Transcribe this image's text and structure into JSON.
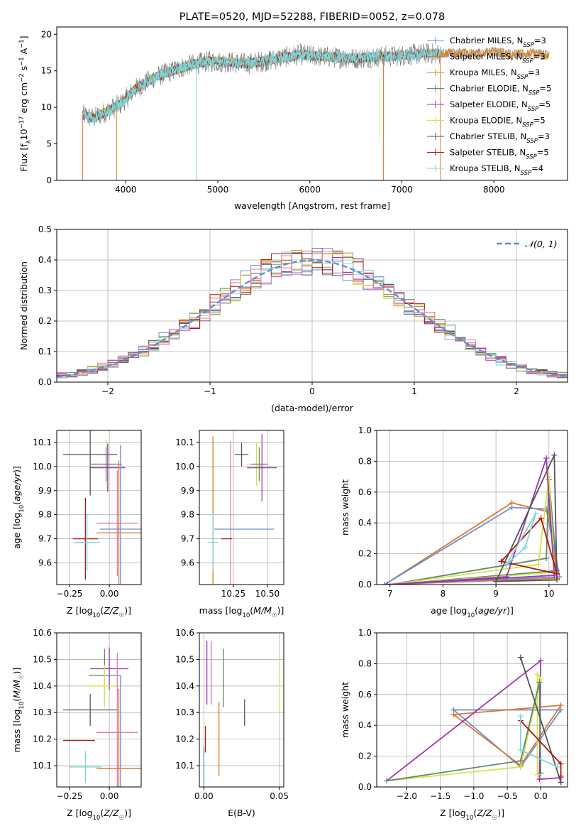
{
  "colors": {
    "Chabrier MILES": "#6b8fd4",
    "Salpeter MILES": "#e0782c",
    "Kroupa MILES": "#cc8a1e",
    "Chabrier ELODIE": "#5e8a6a",
    "Salpeter ELODIE": "#9a37b0",
    "Kroupa ELODIE": "#d4e34a",
    "Chabrier STELIB": "#555555",
    "Salpeter STELIB": "#b01515",
    "Kroupa STELIB": "#7fd6d8",
    "pink": "#e07bb8",
    "gauss": "#5b8fd6"
  },
  "chart_data": [
    {
      "id": "spectrum",
      "type": "line",
      "title": "PLATE=0520, MJD=52288, FIBERID=0052, z=0.078",
      "xlabel": "wavelength [Angstrom, rest frame]",
      "ylabel": "Flux [f_λ10^-17 erg cm^-2 s^-1 A^-1]",
      "xlim": [
        3250,
        8800
      ],
      "ylim": [
        0,
        21
      ],
      "xticks": [
        4000,
        5000,
        6000,
        7000,
        8000
      ],
      "yticks": [
        0,
        5,
        10,
        15,
        20
      ],
      "legend_placement": "top-right",
      "legend": [
        {
          "name": "Chabrier MILES",
          "nssp": "3"
        },
        {
          "name": "Salpeter MILES",
          "nssp": "3"
        },
        {
          "name": "Kroupa MILES",
          "nssp": "3"
        },
        {
          "name": "Chabrier ELODIE",
          "nssp": "5"
        },
        {
          "name": "Salpeter ELODIE",
          "nssp": "5"
        },
        {
          "name": "Kroupa ELODIE",
          "nssp": "5"
        },
        {
          "name": "Chabrier STELIB",
          "nssp": "3"
        },
        {
          "name": "Salpeter STELIB",
          "nssp": "5"
        },
        {
          "name": "Kroupa STELIB",
          "nssp": "4"
        }
      ],
      "continuum": {
        "x": [
          3530,
          3650,
          3800,
          3950,
          4100,
          4300,
          4500,
          4700,
          4900,
          5100,
          5300,
          5500,
          5700,
          5900,
          6100,
          6300,
          6500,
          6700,
          6900,
          7100,
          7300,
          7420
        ],
        "y": [
          9.0,
          8.5,
          9.5,
          10.5,
          12.5,
          14.0,
          15.0,
          15.8,
          16.3,
          16.2,
          16.0,
          16.3,
          16.8,
          17.2,
          17.0,
          16.8,
          16.7,
          16.9,
          17.0,
          17.2,
          17.4,
          17.3
        ]
      },
      "models_tail": {
        "x": [
          7420,
          7600,
          7800,
          8000,
          8200,
          8400,
          8600
        ],
        "y": [
          17.3,
          17.5,
          17.3,
          17.6,
          17.2,
          17.4,
          17.1
        ]
      }
    },
    {
      "id": "residuals",
      "type": "bar",
      "xlabel": "(data-model)/error",
      "ylabel": "Normed distribution",
      "xlim": [
        -2.5,
        2.5
      ],
      "ylim": [
        0,
        0.5
      ],
      "xticks": [
        -2,
        -1,
        0,
        1,
        2
      ],
      "yticks": [
        0.0,
        0.1,
        0.2,
        0.3,
        0.4,
        0.5
      ],
      "legend_placement": "top-right",
      "gauss_label": "𝒩(0, 1)",
      "bin_width": 0.1,
      "bin_start": -2.5
    },
    {
      "id": "age-vs-z",
      "type": "scatter",
      "xlabel": "Z [log10(Z/Z☉)]",
      "ylabel": "age  [log10(age/yr)]",
      "xlim": [
        -0.33,
        0.2
      ],
      "ylim": [
        9.51,
        10.15
      ],
      "xticks": [
        -0.25,
        0.0
      ],
      "yticks": [
        9.6,
        9.7,
        9.8,
        9.9,
        10.0,
        10.1
      ],
      "points": [
        {
          "model": "Chabrier STELIB",
          "x": -0.12,
          "y": 10.05,
          "xerr": 0.17,
          "yerr": 0.17
        },
        {
          "model": "Kroupa ELODIE",
          "x": -0.02,
          "y": 10.01,
          "xerr": 0.1,
          "yerr": 0.1
        },
        {
          "model": "Chabrier ELODIE",
          "x": -0.02,
          "y": 10.01,
          "xerr": 0.1,
          "yerr": 0.07
        },
        {
          "model": "Salpeter ELODIE",
          "x": -0.01,
          "y": 9.995,
          "xerr": 0.11,
          "yerr": 0.1
        },
        {
          "model": "pink",
          "x": 0.05,
          "y": 9.765,
          "xerr": 0.13,
          "yerr": 0.22
        },
        {
          "model": "Chabrier MILES",
          "x": 0.07,
          "y": 9.74,
          "xerr": 0.13,
          "yerr": 0.35
        },
        {
          "model": "Salpeter MILES",
          "x": 0.06,
          "y": 9.725,
          "xerr": 0.14,
          "yerr": 0.3
        },
        {
          "model": "Salpeter STELIB",
          "x": -0.15,
          "y": 9.7,
          "xerr": 0.08,
          "yerr": 0.17
        },
        {
          "model": "Kroupa STELIB",
          "x": -0.14,
          "y": 9.685,
          "xerr": 0.08,
          "yerr": 0.12
        }
      ]
    },
    {
      "id": "age-vs-mass",
      "type": "scatter",
      "xlabel": "mass [log10(M/M☉)]",
      "ylabel": "",
      "xlim": [
        10.0,
        10.62
      ],
      "ylim": [
        9.51,
        10.15
      ],
      "xticks": [
        10.25,
        10.5
      ],
      "yticks": [
        9.6,
        9.7,
        9.8,
        9.9,
        10.0,
        10.1
      ],
      "points": [
        {
          "model": "Chabrier STELIB",
          "x": 10.31,
          "y": 10.05,
          "xerr": 0.05,
          "yerr": 0.05
        },
        {
          "model": "Kroupa ELODIE",
          "x": 10.42,
          "y": 10.01,
          "xerr": 0.07,
          "yerr": 0.09
        },
        {
          "model": "Chabrier ELODIE",
          "x": 10.44,
          "y": 10.01,
          "xerr": 0.06,
          "yerr": 0.07
        },
        {
          "model": "Salpeter ELODIE",
          "x": 10.46,
          "y": 9.995,
          "xerr": 0.11,
          "yerr": 0.14
        },
        {
          "model": "pink",
          "x": 10.23,
          "y": 9.765,
          "xerr": 0.0,
          "yerr": 0.34
        },
        {
          "model": "Chabrier MILES",
          "x": 10.33,
          "y": 9.74,
          "xerr": 0.22,
          "yerr": 0.0
        },
        {
          "model": "Salpeter MILES",
          "x": 10.1,
          "y": 9.725,
          "xerr": 0.0,
          "yerr": 0.4
        },
        {
          "model": "Kroupa MILES",
          "x": 10.1,
          "y": 9.725,
          "xerr": 0.0,
          "yerr": 0.38
        },
        {
          "model": "Salpeter STELIB",
          "x": 10.2,
          "y": 9.7,
          "xerr": 0.04,
          "yerr": 0.0
        },
        {
          "model": "Kroupa STELIB",
          "x": 10.1,
          "y": 9.685,
          "xerr": 0.04,
          "yerr": 0.12
        }
      ]
    },
    {
      "id": "weight-vs-age",
      "type": "line",
      "xlabel": "age  [log10(age/yr)]",
      "ylabel": "mass weight",
      "xlim": [
        6.75,
        10.35
      ],
      "ylim": [
        0,
        1.0
      ],
      "xticks": [
        7,
        8,
        9,
        10
      ],
      "yticks": [
        0.0,
        0.2,
        0.4,
        0.6,
        0.8,
        1.0
      ],
      "series": [
        {
          "model": "Salpeter MILES",
          "x": [
            6.9,
            9.3,
            10.0,
            10.15,
            6.9
          ],
          "y": [
            0.0,
            0.53,
            0.47,
            0.04,
            0.0
          ]
        },
        {
          "model": "Chabrier MILES",
          "x": [
            6.9,
            9.3,
            9.95,
            10.2,
            6.9
          ],
          "y": [
            0.0,
            0.5,
            0.49,
            0.05,
            0.0
          ]
        },
        {
          "model": "Chabrier ELODIE",
          "x": [
            7.0,
            9.95,
            10.0,
            10.15,
            7.0
          ],
          "y": [
            0.0,
            0.17,
            0.68,
            0.09,
            0.0
          ]
        },
        {
          "model": "Kroupa ELODIE",
          "x": [
            7.0,
            9.8,
            10.0,
            10.1,
            7.0
          ],
          "y": [
            0.0,
            0.13,
            0.7,
            0.08,
            0.0
          ]
        },
        {
          "model": "Salpeter ELODIE",
          "x": [
            6.95,
            9.2,
            9.95,
            10.1,
            6.95
          ],
          "y": [
            0.0,
            0.05,
            0.82,
            0.06,
            0.0
          ]
        },
        {
          "model": "Chabrier STELIB",
          "x": [
            9.0,
            10.1,
            10.15,
            9.0
          ],
          "y": [
            0.02,
            0.84,
            0.03,
            0.02
          ]
        },
        {
          "model": "Salpeter STELIB",
          "x": [
            9.1,
            9.85,
            10.15,
            9.1
          ],
          "y": [
            0.15,
            0.43,
            0.07,
            0.15
          ]
        },
        {
          "model": "Kroupa STELIB",
          "x": [
            9.2,
            9.55,
            9.75,
            9.2
          ],
          "y": [
            0.13,
            0.24,
            0.46,
            0.13
          ]
        }
      ]
    },
    {
      "id": "mass-vs-z",
      "type": "scatter",
      "xlabel": "Z [log10(Z/Z☉)]",
      "ylabel": "mass [log10(M/M☉)]",
      "xlim": [
        -0.33,
        0.2
      ],
      "ylim": [
        10.02,
        10.6
      ],
      "xticks": [
        -0.25,
        0.0
      ],
      "yticks": [
        10.1,
        10.2,
        10.3,
        10.4,
        10.5,
        10.6
      ],
      "points": [
        {
          "model": "Salpeter ELODIE",
          "x": 0.0,
          "y": 10.465,
          "xerr": 0.12,
          "yerr": 0.08
        },
        {
          "model": "Chabrier ELODIE",
          "x": -0.03,
          "y": 10.44,
          "xerr": 0.1,
          "yerr": 0.1
        },
        {
          "model": "Kroupa ELODIE",
          "x": -0.03,
          "y": 10.4,
          "xerr": 0.12,
          "yerr": 0.08
        },
        {
          "model": "Chabrier STELIB",
          "x": -0.12,
          "y": 10.31,
          "xerr": 0.17,
          "yerr": 0.06
        },
        {
          "model": "pink",
          "x": 0.05,
          "y": 10.225,
          "xerr": 0.13,
          "yerr": 0.3
        },
        {
          "model": "Salpeter STELIB",
          "x": -0.19,
          "y": 10.195,
          "xerr": 0.1,
          "yerr": 0.0
        },
        {
          "model": "Kroupa STELIB",
          "x": -0.15,
          "y": 10.095,
          "xerr": 0.1,
          "yerr": 0.06
        },
        {
          "model": "Chabrier MILES",
          "x": 0.07,
          "y": 10.09,
          "xerr": 0.13,
          "yerr": 0.35
        },
        {
          "model": "Salpeter MILES",
          "x": 0.06,
          "y": 10.09,
          "xerr": 0.14,
          "yerr": 0.3
        }
      ]
    },
    {
      "id": "mass-vs-ebv",
      "type": "scatter",
      "xlabel": "E(B-V)",
      "ylabel": "",
      "xlim": [
        -0.003,
        0.053
      ],
      "ylim": [
        10.02,
        10.6
      ],
      "xticks": [
        0.0,
        0.05
      ],
      "yticks": [
        10.1,
        10.2,
        10.3,
        10.4,
        10.5,
        10.6
      ],
      "points": [
        {
          "model": "pink",
          "x": 0.005,
          "y": 10.45,
          "xerr": 0.0,
          "yerr": 0.12
        },
        {
          "model": "Salpeter ELODIE",
          "x": 0.002,
          "y": 10.45,
          "xerr": 0.0,
          "yerr": 0.12
        },
        {
          "model": "Chabrier ELODIE",
          "x": 0.013,
          "y": 10.43,
          "xerr": 0.0,
          "yerr": 0.11
        },
        {
          "model": "Salpeter MILES",
          "x": 0.01,
          "y": 10.2,
          "xerr": 0.0,
          "yerr": 0.14
        },
        {
          "model": "Chabrier STELIB",
          "x": 0.027,
          "y": 10.3,
          "xerr": 0.0,
          "yerr": 0.05
        },
        {
          "model": "Salpeter STELIB",
          "x": 0.001,
          "y": 10.2,
          "xerr": 0.0,
          "yerr": 0.05
        },
        {
          "model": "Kroupa ELODIE",
          "x": 0.05,
          "y": 10.4,
          "xerr": 0.0,
          "yerr": 0.1
        },
        {
          "model": "Kroupa STELIB",
          "x": 0.0,
          "y": 10.1,
          "xerr": 0.0,
          "yerr": 0.06
        },
        {
          "model": "Chabrier MILES",
          "x": 0.0,
          "y": 10.09,
          "xerr": 0.0,
          "yerr": 0.08
        }
      ]
    },
    {
      "id": "weight-vs-z",
      "type": "line",
      "xlabel": "Z [log10(Z/Z☉)]",
      "ylabel": "mass weight",
      "xlim": [
        -2.45,
        0.4
      ],
      "ylim": [
        0,
        1.0
      ],
      "xticks": [
        -2.0,
        -1.5,
        -1.0,
        -0.5,
        0.0
      ],
      "yticks": [
        0.0,
        0.2,
        0.4,
        0.6,
        0.8,
        1.0
      ],
      "series": [
        {
          "model": "Chabrier MILES",
          "x": [
            -1.3,
            -0.3,
            0.3,
            -1.3
          ],
          "y": [
            0.5,
            0.13,
            0.5,
            0.5
          ]
        },
        {
          "model": "Salpeter MILES",
          "x": [
            -1.3,
            -0.3,
            0.3,
            -1.3
          ],
          "y": [
            0.47,
            0.14,
            0.53,
            0.47
          ]
        },
        {
          "model": "Salpeter ELODIE",
          "x": [
            -2.3,
            0.0,
            -0.02,
            0.3
          ],
          "y": [
            0.04,
            0.82,
            0.05,
            0.06
          ]
        },
        {
          "model": "Kroupa ELODIE",
          "x": [
            -2.3,
            -0.3,
            0.0,
            -0.05,
            -0.05
          ],
          "y": [
            0.04,
            0.13,
            0.7,
            0.73,
            0.08
          ]
        },
        {
          "model": "Chabrier ELODIE",
          "x": [
            -2.3,
            -0.3,
            -0.02,
            0.0
          ],
          "y": [
            0.04,
            0.17,
            0.68,
            0.09
          ]
        },
        {
          "model": "Chabrier STELIB",
          "x": [
            -0.3,
            0.3,
            0.3,
            -0.3
          ],
          "y": [
            0.84,
            0.03,
            0.03,
            0.84
          ]
        },
        {
          "model": "Salpeter STELIB",
          "x": [
            -0.3,
            0.3,
            0.3
          ],
          "y": [
            0.43,
            0.15,
            0.07
          ]
        },
        {
          "model": "Kroupa STELIB",
          "x": [
            -0.3,
            -0.3,
            0.25
          ],
          "y": [
            0.46,
            0.24,
            0.13
          ]
        }
      ]
    }
  ]
}
